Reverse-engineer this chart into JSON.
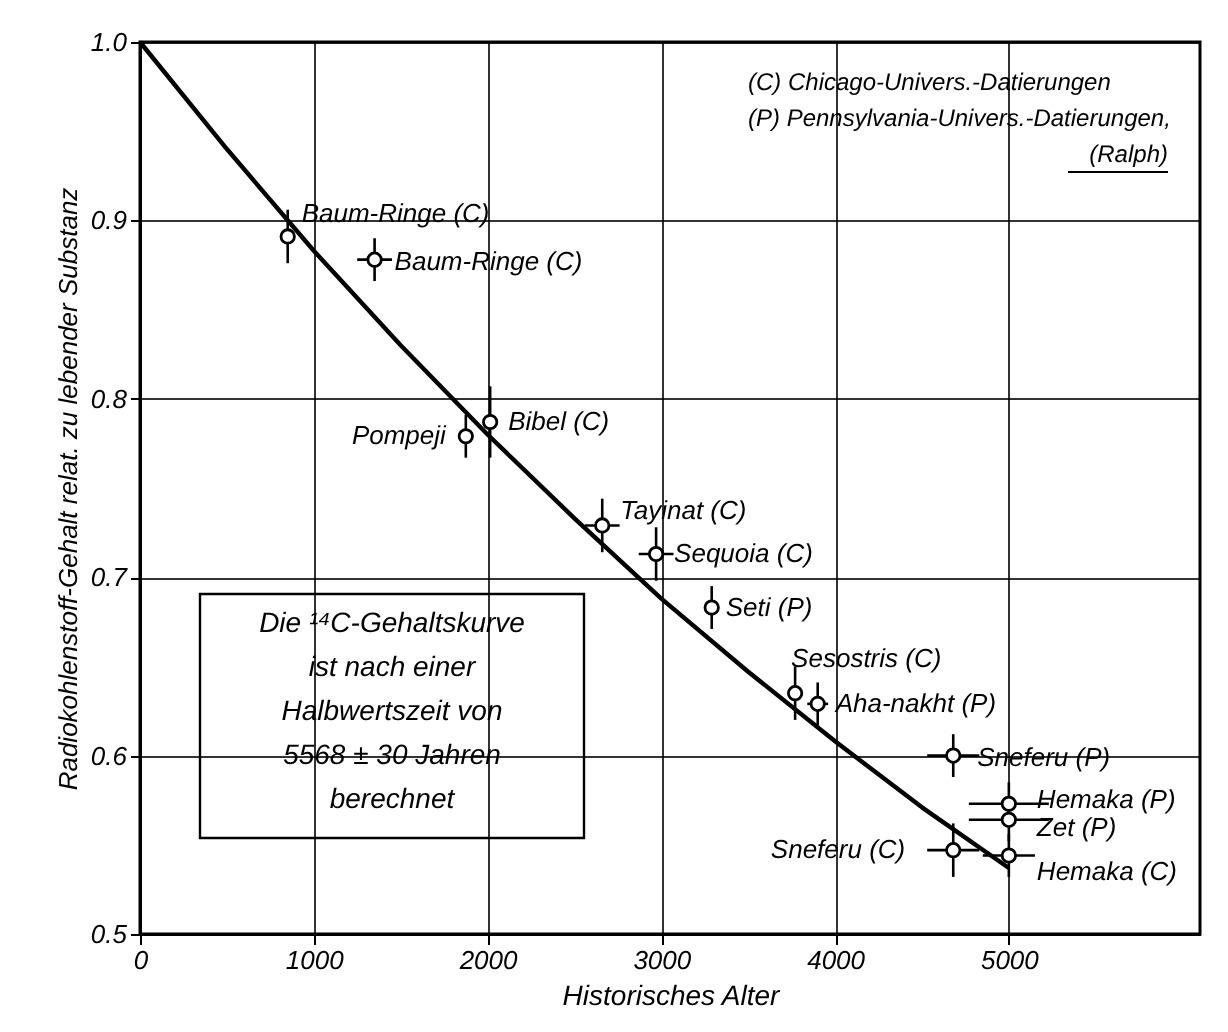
{
  "chart_data": {
    "type": "line",
    "xlabel": "Historisches Alter",
    "ylabel": "Radiokohlenstoff-Gehalt relat. zu lebender Substanz",
    "xlim": [
      0,
      6100
    ],
    "xticks": [
      0,
      1000,
      2000,
      3000,
      4000,
      5000
    ],
    "ylim": [
      0.5,
      1.0
    ],
    "yticks": [
      0.5,
      0.6,
      0.7,
      0.8,
      0.9,
      {
        "value": 1.0,
        "label": "1.0"
      }
    ],
    "grid": true,
    "line_style": "solid",
    "series": [
      {
        "color": "#000000",
        "x": [
          0,
          500,
          1000,
          1500,
          2000,
          2500,
          3000,
          3500,
          4000,
          4500,
          5000
        ],
        "values": [
          1.0,
          0.94,
          0.883,
          0.83,
          0.78,
          0.733,
          0.688,
          0.647,
          0.608,
          0.571,
          0.537
        ]
      },
      {
        "type": "scatter",
        "marker": "circle",
        "color": "#000000",
        "x": [
          850,
          1350,
          1875,
          2015,
          2660,
          2970,
          3290,
          3770,
          3900,
          4680,
          5000,
          5000,
          4680,
          5000
        ],
        "values": [
          0.891,
          0.878,
          0.779,
          0.787,
          0.729,
          0.713,
          0.683,
          0.635,
          0.629,
          0.6,
          0.573,
          0.564,
          0.547,
          0.544
        ],
        "errors": [
          0.015,
          0.012,
          0.012,
          0.02,
          0.015,
          0.015,
          0.012,
          0.015,
          0.012,
          0.012,
          0.012,
          0.012,
          0.015,
          0.012
        ],
        "xerrors": [
          null,
          100,
          null,
          null,
          100,
          100,
          null,
          null,
          60,
          150,
          230,
          230,
          150,
          150
        ]
      }
    ],
    "annotations": [
      {
        "text": "Baum-Ringe (C)",
        "x": 850,
        "y": 0.891
      },
      {
        "text": "Baum-Ringe (C)",
        "x": 1350,
        "y": 0.878
      },
      {
        "text": "Pompeji",
        "x": 1875,
        "y": 0.779
      },
      {
        "text": "Bibel (C)",
        "x": 2015,
        "y": 0.787
      },
      {
        "text": "Tayinat (C)",
        "x": 2660,
        "y": 0.729
      },
      {
        "text": "Sequoia (C)",
        "x": 2970,
        "y": 0.713
      },
      {
        "text": "Seti (P)",
        "x": 3290,
        "y": 0.683
      },
      {
        "text": "Sesostris (C)",
        "x": 3770,
        "y": 0.635
      },
      {
        "text": "Aha-nakht (P)",
        "x": 3900,
        "y": 0.629
      },
      {
        "text": "Sneferu (P)",
        "x": 4680,
        "y": 0.6
      },
      {
        "text": "Hemaka (P)",
        "x": 5000,
        "y": 0.573
      },
      {
        "text": "Zet (P)",
        "x": 5000,
        "y": 0.564
      },
      {
        "text": "Sneferu (C)",
        "x": 4680,
        "y": 0.547
      },
      {
        "text": "Hemaka (C)",
        "x": 5000,
        "y": 0.544
      },
      "(C) Chicago-Univers.-Datierungen",
      "(P) Pennsylvania-Univers.-Datierungen,",
      "(Ralph)",
      "Die ¹⁴C-Gehaltskurve ist nach einer Halbwertszeit von 5568 ± 30 Jahren berechnet"
    ]
  }
}
